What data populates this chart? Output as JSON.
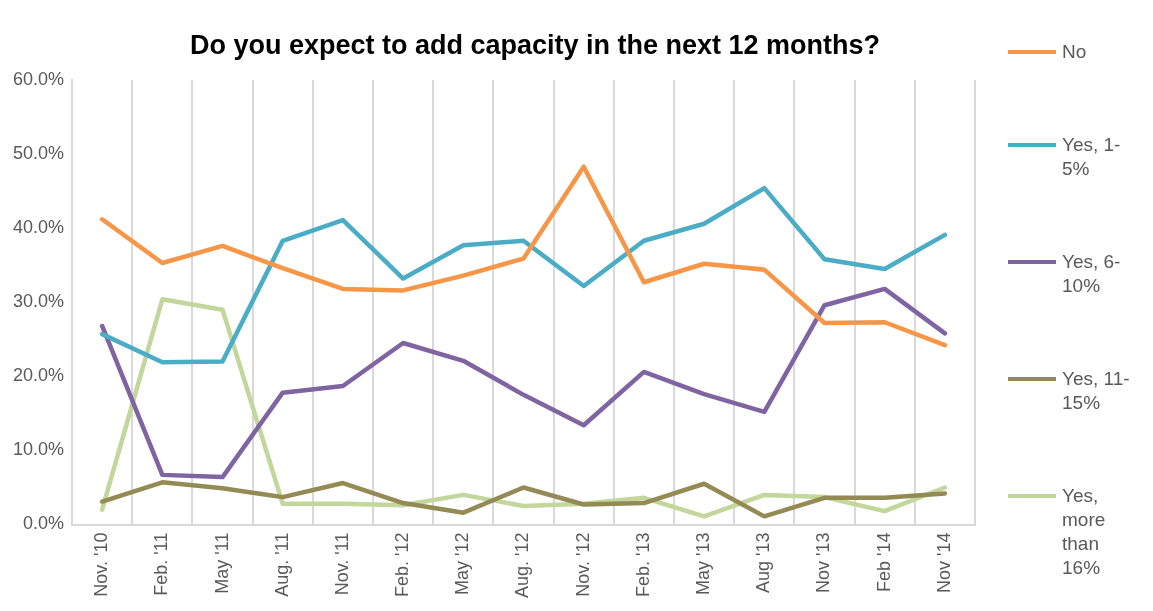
{
  "chart_data": {
    "type": "line",
    "title": "Do you expect to add capacity in the next 12 months?",
    "categories": [
      "Nov. '10",
      "Feb. '11",
      "May '11",
      "Aug. '11",
      "Nov. '11",
      "Feb. '12",
      "May '12",
      "Aug. '12",
      "Nov. '12",
      "Feb. '13",
      "May '13",
      "Aug '13",
      "Nov '13",
      "Feb '14",
      "Nov '14"
    ],
    "series": [
      {
        "name": "No",
        "color": "#f79646",
        "values": [
          41.2,
          35.3,
          37.6,
          34.6,
          31.8,
          31.6,
          33.6,
          35.9,
          48.3,
          32.7,
          35.2,
          34.4,
          27.2,
          27.3,
          24.2
        ]
      },
      {
        "name": "Yes, 1-5%",
        "color": "#4bacc6",
        "values": [
          25.7,
          21.9,
          22.0,
          38.3,
          41.1,
          33.2,
          37.7,
          38.3,
          32.2,
          38.3,
          40.6,
          45.4,
          35.8,
          34.5,
          39.1
        ]
      },
      {
        "name": "Yes, 6-10%",
        "color": "#8064a2",
        "values": [
          26.8,
          6.7,
          6.4,
          17.8,
          18.7,
          24.5,
          22.1,
          17.5,
          13.4,
          20.6,
          17.6,
          15.2,
          29.6,
          31.8,
          25.8
        ]
      },
      {
        "name": "Yes, 11-15%",
        "color": "#948a54",
        "values": [
          3.1,
          5.7,
          4.9,
          3.7,
          5.6,
          2.9,
          1.6,
          5.0,
          2.7,
          2.9,
          5.5,
          1.1,
          3.6,
          3.6,
          4.2
        ]
      },
      {
        "name": "Yes, more than 16%",
        "color": "#c3d69b",
        "values": [
          2.0,
          30.4,
          29.0,
          2.8,
          2.8,
          2.6,
          4.0,
          2.5,
          2.8,
          3.6,
          1.1,
          4.0,
          3.7,
          1.8,
          5.0
        ]
      }
    ],
    "ylim": [
      0,
      60
    ],
    "yticks": [
      {
        "value": 0,
        "label": "0.0%"
      },
      {
        "value": 10,
        "label": "10.0%"
      },
      {
        "value": 20,
        "label": "20.0%"
      },
      {
        "value": 30,
        "label": "30.0%"
      },
      {
        "value": 40,
        "label": "40.0%"
      },
      {
        "value": 50,
        "label": "50.0%"
      },
      {
        "value": 60,
        "label": "60.0%"
      }
    ],
    "grid": "x",
    "legend": "right",
    "marker": "none",
    "line_style": "solid"
  }
}
